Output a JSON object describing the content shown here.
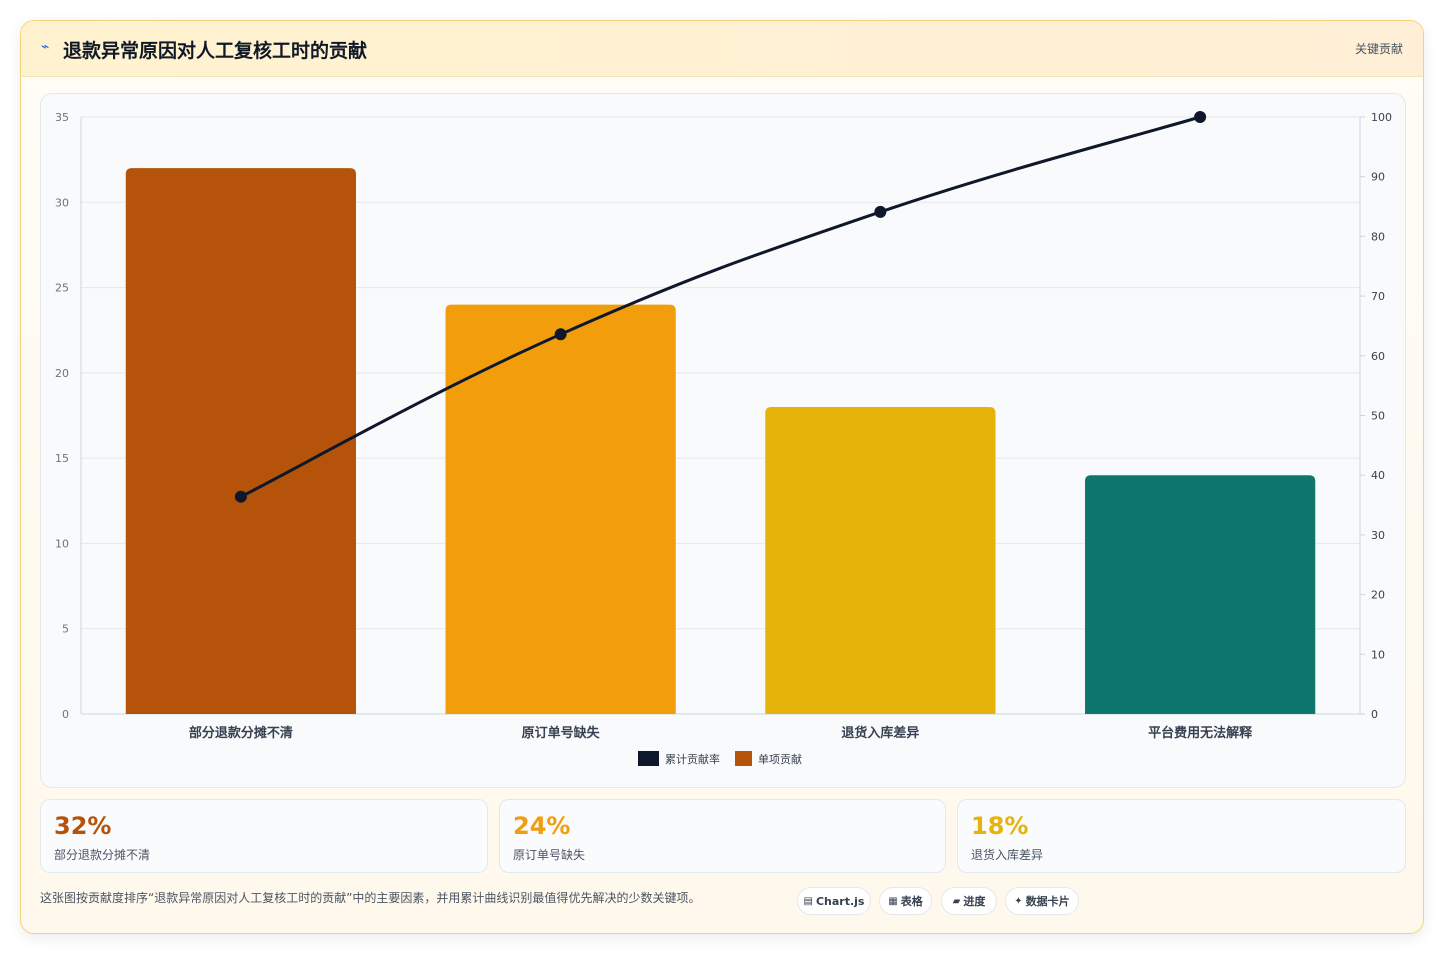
{
  "header": {
    "icon": "line-chart-icon",
    "title": "退款异常原因对人工复核工时的贡献",
    "badge": "关键贡献"
  },
  "chart_data": {
    "type": "bar",
    "categories": [
      "部分退款分摊不清",
      "原订单号缺失",
      "退货入库差异",
      "平台费用无法解释"
    ],
    "series": [
      {
        "name": "单项贡献",
        "type": "bar",
        "axis": "left",
        "values": [
          32,
          24,
          18,
          14
        ],
        "colors": [
          "#b45309",
          "#f29e0c",
          "#e6b30a",
          "#0f766e"
        ]
      },
      {
        "name": "累计贡献率",
        "type": "line",
        "axis": "right",
        "values": [
          36.4,
          63.6,
          84.1,
          100
        ],
        "color": "#0f172a"
      }
    ],
    "y_left": {
      "min": 0,
      "max": 35,
      "ticks": [
        0,
        5,
        10,
        15,
        20,
        25,
        30,
        35
      ]
    },
    "y_right": {
      "min": 0,
      "max": 100,
      "ticks": [
        0,
        10,
        20,
        30,
        40,
        50,
        60,
        70,
        80,
        90,
        100
      ]
    },
    "grid": true,
    "legend_position": "bottom"
  },
  "stats": [
    {
      "value": "32%",
      "label": "部分退款分摊不清",
      "color": "#b45309"
    },
    {
      "value": "24%",
      "label": "原订单号缺失",
      "color": "#f29e0c"
    },
    {
      "value": "18%",
      "label": "退货入库差异",
      "color": "#e6b30a"
    }
  ],
  "footer": {
    "note": "这张图按贡献度排序“退款异常原因对人工复核工时的贡献”中的主要因素，并用累计曲线识别最值得优先解决的少数关键项。",
    "tags": [
      {
        "icon": "chart-icon",
        "glyph": "▤",
        "label": "Chart.js"
      },
      {
        "icon": "table-icon",
        "glyph": "▦",
        "label": "表格"
      },
      {
        "icon": "progress-icon",
        "glyph": "▰",
        "label": "进度"
      },
      {
        "icon": "sparkle-icon",
        "glyph": "✦",
        "label": "数据卡片"
      }
    ]
  }
}
